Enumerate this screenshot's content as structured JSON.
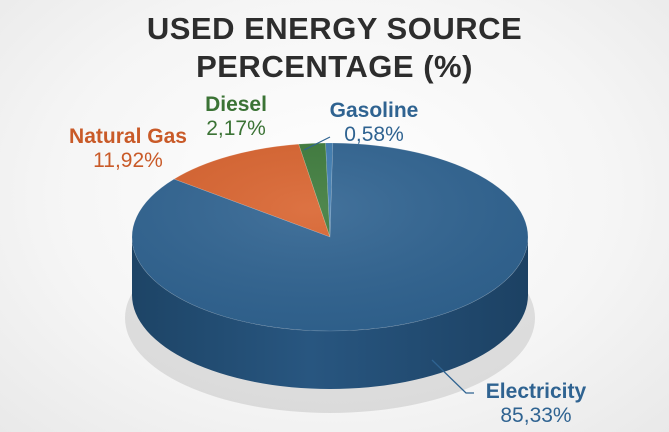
{
  "chart_data": {
    "type": "pie",
    "title_lines": [
      "USED ENERGY SOURCE",
      "PERCENTAGE (%)"
    ],
    "slices": [
      {
        "label": "Electricity",
        "value": 85.33,
        "value_text": "85,33%",
        "color": "#2f6391",
        "label_color": "#2f6391"
      },
      {
        "label": "Natural Gas",
        "value": 11.92,
        "value_text": "11,92%",
        "color": "#d9632e",
        "label_color": "#c95a28"
      },
      {
        "label": "Diesel",
        "value": 2.17,
        "value_text": "2,17%",
        "color": "#3c7a3a",
        "label_color": "#3b7335"
      },
      {
        "label": "Gasoline",
        "value": 0.58,
        "value_text": "0,58%",
        "color": "#3d7bb0",
        "label_color": "#2f6391"
      }
    ]
  }
}
